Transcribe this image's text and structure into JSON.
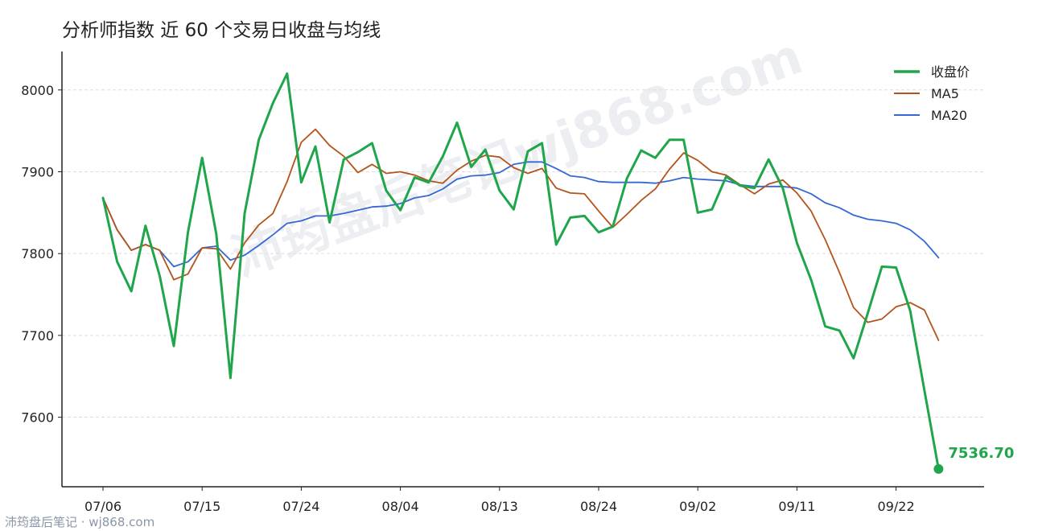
{
  "title": "分析师指数 近 60 个交易日收盘与均线",
  "watermark": "沛筠盘后笔记wj868.com",
  "footer": "沛筠盘后笔记 · wj868.com",
  "colors": {
    "close": "#1fa64b",
    "ma5": "#b5531a",
    "ma20": "#3568d4",
    "grid": "#dddddd",
    "axis": "#222222",
    "footer": "#8a96a8"
  },
  "chart_data": {
    "type": "line",
    "title": "分析师指数 近 60 个交易日收盘与均线",
    "xlabel": "",
    "ylabel": "",
    "ylim": [
      7515,
      8047
    ],
    "yticks": [
      7600,
      7700,
      7800,
      7900,
      8000
    ],
    "grid": "horizontal-dashed",
    "legend_position": "top-right",
    "x_ticks": [
      {
        "index": 0,
        "label": "07/06"
      },
      {
        "index": 7,
        "label": "07/15"
      },
      {
        "index": 14,
        "label": "07/24"
      },
      {
        "index": 21,
        "label": "08/04"
      },
      {
        "index": 28,
        "label": "08/13"
      },
      {
        "index": 35,
        "label": "08/24"
      },
      {
        "index": 42,
        "label": "09/02"
      },
      {
        "index": 49,
        "label": "09/11"
      },
      {
        "index": 56,
        "label": "09/22"
      }
    ],
    "last_label": "7536.70",
    "series": [
      {
        "name": "收盘价",
        "key": "close",
        "values": [
          7868,
          7790,
          7754,
          7834,
          7773,
          7687,
          7826,
          7917,
          7824,
          7648,
          7849,
          7939,
          7984,
          8020,
          7887,
          7931,
          7838,
          7915,
          7924,
          7935,
          7877,
          7853,
          7893,
          7887,
          7919,
          7960,
          7906,
          7927,
          7877,
          7854,
          7925,
          7935,
          7811,
          7844,
          7846,
          7826,
          7833,
          7892,
          7926,
          7917,
          7939,
          7939,
          7850,
          7854,
          7894,
          7883,
          7880,
          7915,
          7880,
          7813,
          7768,
          7711,
          7706,
          7672,
          7727,
          7784,
          7783,
          7730,
          7633,
          7536.7
        ]
      },
      {
        "name": "MA5",
        "key": "ma5",
        "values": [
          7868,
          7829,
          7804,
          7811,
          7804,
          7768,
          7775,
          7807,
          7806,
          7781,
          7813,
          7835,
          7849,
          7888,
          7936,
          7952,
          7932,
          7919,
          7899,
          7909,
          7898,
          7900,
          7896,
          7889,
          7886,
          7902,
          7913,
          7920,
          7918,
          7905,
          7898,
          7904,
          7880,
          7874,
          7873,
          7852,
          7832,
          7848,
          7865,
          7879,
          7903,
          7923,
          7914,
          7900,
          7896,
          7884,
          7873,
          7885,
          7890,
          7874,
          7852,
          7817,
          7777,
          7734,
          7716,
          7720,
          7735,
          7740,
          7731,
          7694
        ]
      },
      {
        "name": "MA20",
        "key": "ma20",
        "values": [
          7868,
          7829,
          7804,
          7811,
          7804,
          7784,
          7790,
          7807,
          7809,
          7792,
          7798,
          7810,
          7823,
          7837,
          7840,
          7846,
          7846,
          7849,
          7853,
          7857,
          7858,
          7861,
          7868,
          7871,
          7879,
          7891,
          7895,
          7896,
          7899,
          7909,
          7912,
          7912,
          7904,
          7895,
          7893,
          7888,
          7887,
          7887,
          7887,
          7886,
          7889,
          7893,
          7891,
          7890,
          7889,
          7884,
          7882,
          7882,
          7882,
          7880,
          7873,
          7862,
          7856,
          7847,
          7842,
          7840,
          7837,
          7829,
          7815,
          7795
        ]
      }
    ]
  }
}
